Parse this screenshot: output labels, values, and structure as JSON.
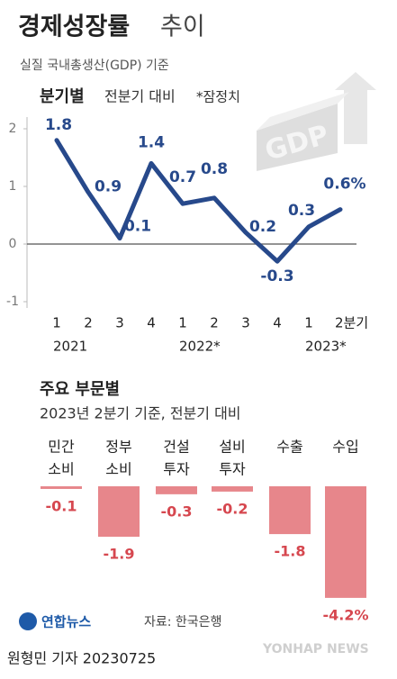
{
  "header": {
    "title": [
      "경제성장률",
      "추이"
    ],
    "subtitle": "실질 국내총생산(GDP) 기준",
    "illustration_text": "GDP"
  },
  "chart_data": [
    {
      "type": "line",
      "title": "분기별",
      "subtitle": "전분기 대비",
      "note": "*잠정치",
      "categories": [
        "1",
        "2",
        "3",
        "4",
        "1",
        "2",
        "3",
        "4",
        "1",
        "2분기"
      ],
      "years": [
        "2021",
        null,
        null,
        null,
        "2022*",
        null,
        null,
        null,
        "2023*",
        null
      ],
      "values": [
        1.8,
        0.9,
        0.1,
        1.4,
        0.7,
        0.8,
        0.2,
        -0.3,
        0.3,
        0.6
      ],
      "value_labels": [
        "1.8",
        "0.9",
        "0.1",
        "1.4",
        "0.7",
        "0.8",
        "0.2",
        "-0.3",
        "0.3",
        "0.6%"
      ],
      "color": "#27498b",
      "ylim": [
        -1,
        2
      ],
      "yticks": [
        -1,
        0,
        1,
        2
      ]
    },
    {
      "type": "bar",
      "title": "주요 부문별",
      "subtitle": "2023년 2분기 기준, 전분기 대비",
      "categories": [
        [
          "민간",
          "소비"
        ],
        [
          "정부",
          "소비"
        ],
        [
          "건설",
          "투자"
        ],
        [
          "설비",
          "투자"
        ],
        [
          "수출"
        ],
        [
          "수입"
        ]
      ],
      "values": [
        -0.1,
        -1.9,
        -0.3,
        -0.2,
        -1.8,
        -4.2
      ],
      "value_labels": [
        "-0.1",
        "-1.9",
        "-0.3",
        "-0.2",
        "-1.8",
        "-4.2%"
      ],
      "color": "#e7868b",
      "label_color": "#d6474f"
    }
  ],
  "footer": {
    "logo": "연합뉴스",
    "source": "자료: 한국은행",
    "byline": "원형민 기자 20230725",
    "watermark": "YONHAP NEWS"
  }
}
